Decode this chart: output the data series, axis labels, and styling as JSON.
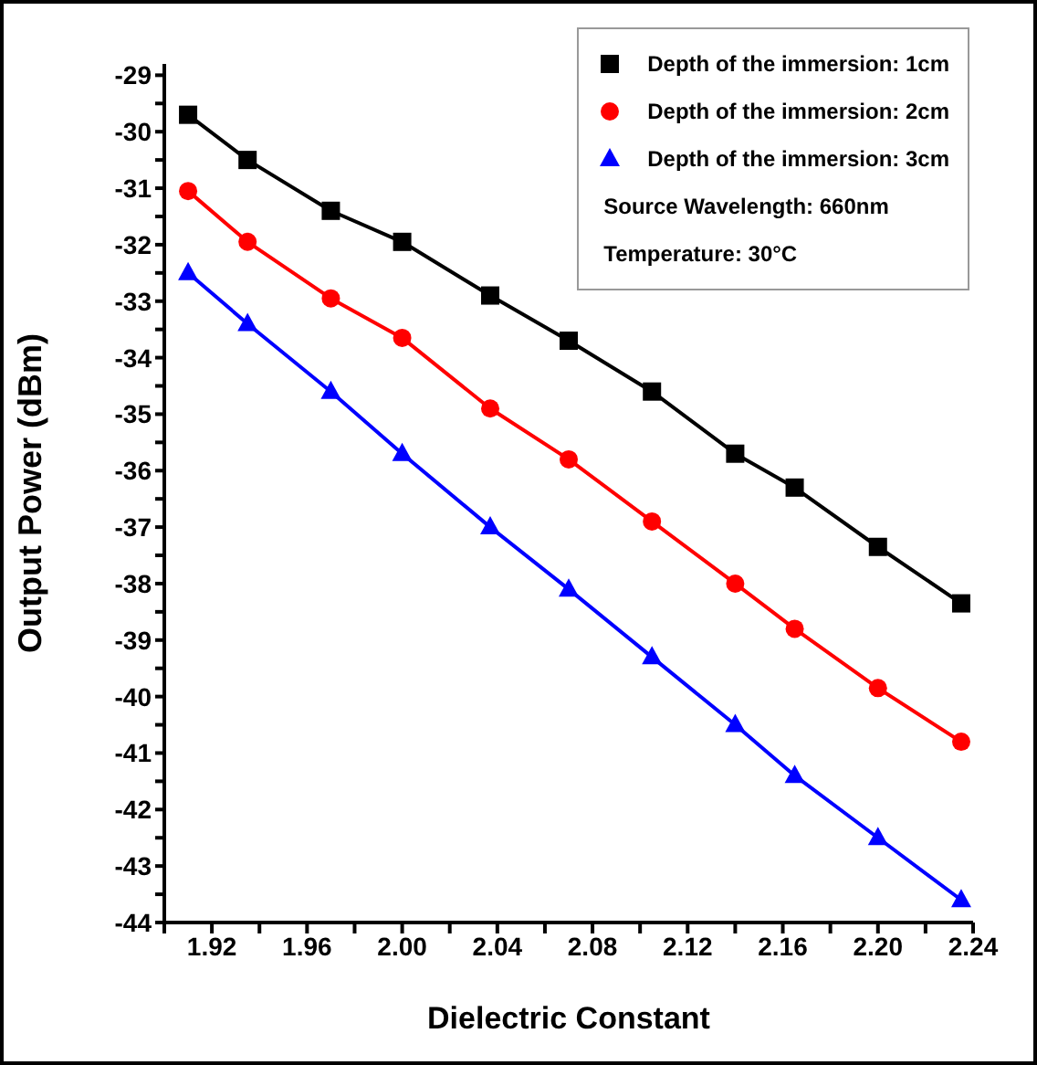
{
  "chart_data": {
    "type": "line",
    "xlabel": "Dielectric Constant",
    "ylabel": "Output Power (dBm)",
    "x": [
      1.91,
      1.935,
      1.97,
      2.0,
      2.037,
      2.07,
      2.105,
      2.14,
      2.165,
      2.2,
      2.235
    ],
    "series": [
      {
        "name": "Depth of the immersion: 1cm",
        "color": "#000000",
        "marker": "square",
        "values": [
          -29.7,
          -30.5,
          -31.4,
          -31.95,
          -32.9,
          -33.7,
          -34.6,
          -35.7,
          -36.3,
          -37.35,
          -38.35
        ]
      },
      {
        "name": "Depth of the immersion: 2cm",
        "color": "#ff0000",
        "marker": "circle",
        "values": [
          -31.05,
          -31.95,
          -32.95,
          -33.65,
          -34.9,
          -35.8,
          -36.9,
          -38.0,
          -38.8,
          -39.85,
          -40.8
        ]
      },
      {
        "name": "Depth of the immersion: 3cm",
        "color": "#0000ff",
        "marker": "triangle",
        "values": [
          -32.5,
          -33.4,
          -34.6,
          -35.7,
          -37.0,
          -38.1,
          -39.3,
          -40.5,
          -41.4,
          -42.5,
          -43.6
        ]
      }
    ],
    "annotations": [
      "Source Wavelength: 660nm",
      "Temperature: 30°C"
    ],
    "xlim": [
      1.9,
      2.24
    ],
    "xticks": [
      {
        "value": 1.9,
        "label": null
      },
      {
        "value": 1.92,
        "label": "1.92"
      },
      {
        "value": 1.94,
        "label": null
      },
      {
        "value": 1.96,
        "label": "1.96"
      },
      {
        "value": 1.98,
        "label": null
      },
      {
        "value": 2.0,
        "label": "2.00"
      },
      {
        "value": 2.02,
        "label": null
      },
      {
        "value": 2.04,
        "label": "2.04"
      },
      {
        "value": 2.06,
        "label": null
      },
      {
        "value": 2.08,
        "label": "2.08"
      },
      {
        "value": 2.1,
        "label": null
      },
      {
        "value": 2.12,
        "label": "2.12"
      },
      {
        "value": 2.14,
        "label": null
      },
      {
        "value": 2.16,
        "label": "2.16"
      },
      {
        "value": 2.18,
        "label": null
      },
      {
        "value": 2.2,
        "label": "2.20"
      },
      {
        "value": 2.22,
        "label": null
      },
      {
        "value": 2.24,
        "label": "2.24"
      }
    ],
    "ylim": [
      -44,
      -28.8
    ],
    "yticks": [
      -44,
      {
        "value": -43.5,
        "label": null
      },
      -43,
      {
        "value": -42.5,
        "label": null
      },
      -42,
      {
        "value": -41.5,
        "label": null
      },
      -41,
      {
        "value": -40.5,
        "label": null
      },
      -40,
      {
        "value": -39.5,
        "label": null
      },
      -39,
      {
        "value": -38.5,
        "label": null
      },
      -38,
      {
        "value": -37.5,
        "label": null
      },
      -37,
      {
        "value": -36.5,
        "label": null
      },
      -36,
      {
        "value": -35.5,
        "label": null
      },
      -35,
      {
        "value": -34.5,
        "label": null
      },
      -34,
      {
        "value": -33.5,
        "label": null
      },
      -33,
      {
        "value": -32.5,
        "label": null
      },
      -32,
      {
        "value": -31.5,
        "label": null
      },
      -31,
      {
        "value": -30.5,
        "label": null
      },
      -30,
      {
        "value": -29.5,
        "label": null
      },
      -29
    ],
    "grid": false,
    "legend": "top right",
    "line_style": "solid"
  }
}
